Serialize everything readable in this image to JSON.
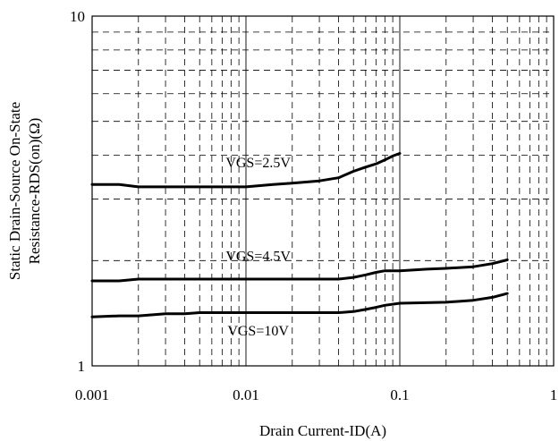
{
  "chart_data": {
    "type": "line",
    "title": "",
    "xlabel": "Drain Current-ID(A)",
    "ylabel_lines": [
      "Static Drain-Source On-State",
      "Resistance-RDS(on)(Ω)"
    ],
    "x_scale": "log",
    "y_scale": "log",
    "xlim": [
      0.001,
      1
    ],
    "ylim": [
      1,
      10
    ],
    "x_ticks": [
      0.001,
      0.01,
      0.1,
      1
    ],
    "x_tick_labels": [
      "0.001",
      "0.01",
      "0.1",
      "1"
    ],
    "y_ticks": [
      1,
      10
    ],
    "y_tick_labels": [
      "1",
      "10"
    ],
    "grid": true,
    "series": [
      {
        "name": "VGS=2.5V",
        "color": "#000000",
        "points": [
          [
            0.001,
            3.3
          ],
          [
            0.0015,
            3.3
          ],
          [
            0.002,
            3.25
          ],
          [
            0.003,
            3.25
          ],
          [
            0.005,
            3.25
          ],
          [
            0.007,
            3.25
          ],
          [
            0.01,
            3.25
          ],
          [
            0.015,
            3.3
          ],
          [
            0.02,
            3.33
          ],
          [
            0.03,
            3.38
          ],
          [
            0.04,
            3.45
          ],
          [
            0.05,
            3.6
          ],
          [
            0.06,
            3.7
          ],
          [
            0.07,
            3.78
          ],
          [
            0.08,
            3.88
          ],
          [
            0.09,
            3.98
          ],
          [
            0.1,
            4.05
          ]
        ]
      },
      {
        "name": "VGS=4.5V",
        "color": "#000000",
        "points": [
          [
            0.001,
            1.75
          ],
          [
            0.0015,
            1.75
          ],
          [
            0.002,
            1.77
          ],
          [
            0.003,
            1.77
          ],
          [
            0.005,
            1.77
          ],
          [
            0.01,
            1.77
          ],
          [
            0.02,
            1.77
          ],
          [
            0.03,
            1.77
          ],
          [
            0.04,
            1.77
          ],
          [
            0.05,
            1.79
          ],
          [
            0.06,
            1.82
          ],
          [
            0.07,
            1.85
          ],
          [
            0.08,
            1.87
          ],
          [
            0.1,
            1.87
          ],
          [
            0.15,
            1.89
          ],
          [
            0.2,
            1.9
          ],
          [
            0.3,
            1.92
          ],
          [
            0.4,
            1.96
          ],
          [
            0.5,
            2.01
          ]
        ]
      },
      {
        "name": "VGS=10V",
        "color": "#000000",
        "points": [
          [
            0.001,
            1.38
          ],
          [
            0.0015,
            1.39
          ],
          [
            0.002,
            1.39
          ],
          [
            0.003,
            1.41
          ],
          [
            0.004,
            1.41
          ],
          [
            0.005,
            1.42
          ],
          [
            0.01,
            1.42
          ],
          [
            0.02,
            1.42
          ],
          [
            0.03,
            1.42
          ],
          [
            0.04,
            1.42
          ],
          [
            0.05,
            1.43
          ],
          [
            0.06,
            1.45
          ],
          [
            0.07,
            1.47
          ],
          [
            0.08,
            1.49
          ],
          [
            0.1,
            1.51
          ],
          [
            0.2,
            1.52
          ],
          [
            0.3,
            1.54
          ],
          [
            0.4,
            1.57
          ],
          [
            0.5,
            1.61
          ]
        ]
      }
    ],
    "annotations": [
      {
        "text": "VGS=2.5V",
        "x": 0.012,
        "y": 3.7
      },
      {
        "text": "VGS=4.5V",
        "x": 0.012,
        "y": 2.0
      },
      {
        "text": "VGS=10V",
        "x": 0.012,
        "y": 1.22
      }
    ]
  }
}
